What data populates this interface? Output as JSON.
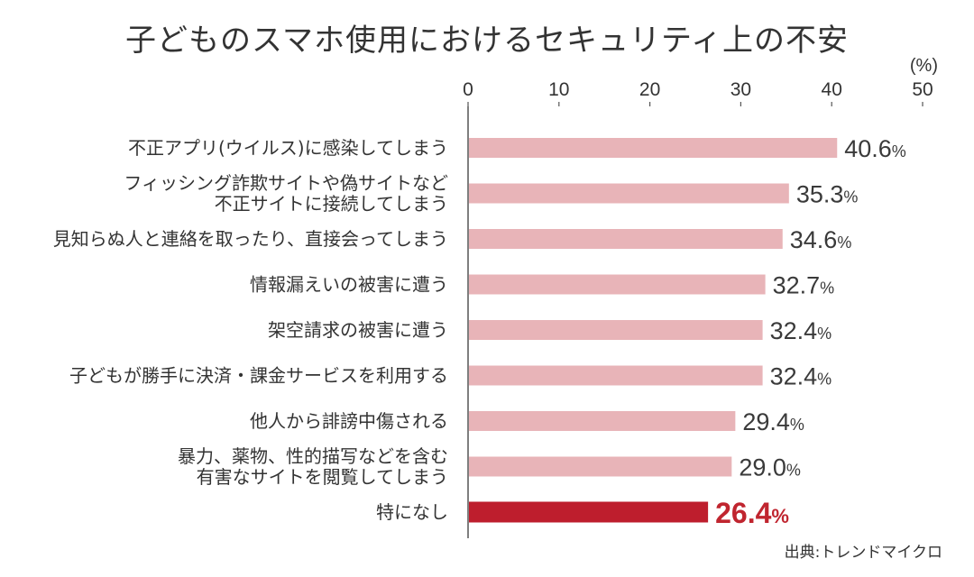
{
  "chart_data": {
    "type": "bar",
    "orientation": "horizontal",
    "title": "子どものスマホ使用におけるセキュリティ上の不安",
    "unit": "(%)",
    "xlim": [
      0,
      50
    ],
    "ticks": [
      "0",
      "10",
      "20",
      "30",
      "40",
      "50"
    ],
    "categories": [
      [
        "不正アプリ(ウイルス)に感染してしまう"
      ],
      [
        "フィッシング詐欺サイトや偽サイトなど",
        "不正サイトに接続してしまう"
      ],
      [
        "見知らぬ人と連絡を取ったり、直接会ってしまう"
      ],
      [
        "情報漏えいの被害に遭う"
      ],
      [
        "架空請求の被害に遭う"
      ],
      [
        "子どもが勝手に決済・課金サービスを利用する"
      ],
      [
        "他人から誹謗中傷される"
      ],
      [
        "暴力、薬物、性的描写などを含む",
        "有害なサイトを閲覧してしまう"
      ],
      [
        "特になし"
      ]
    ],
    "values": [
      40.6,
      35.3,
      34.6,
      32.7,
      32.4,
      32.4,
      29.4,
      29.0,
      26.4
    ],
    "value_labels": [
      "40.6",
      "35.3",
      "34.6",
      "32.7",
      "32.4",
      "32.4",
      "29.4",
      "29.0",
      "26.4"
    ],
    "value_suffix": "%",
    "highlight_index": 8,
    "grid": false,
    "legend": "none",
    "colors": {
      "bar": "#e8b4b8",
      "highlight_bar": "#be1e2d",
      "highlight_text": "#c0252f",
      "axis": "#555555",
      "text": "#333333"
    },
    "source": "出典:トレンドマイクロ"
  }
}
